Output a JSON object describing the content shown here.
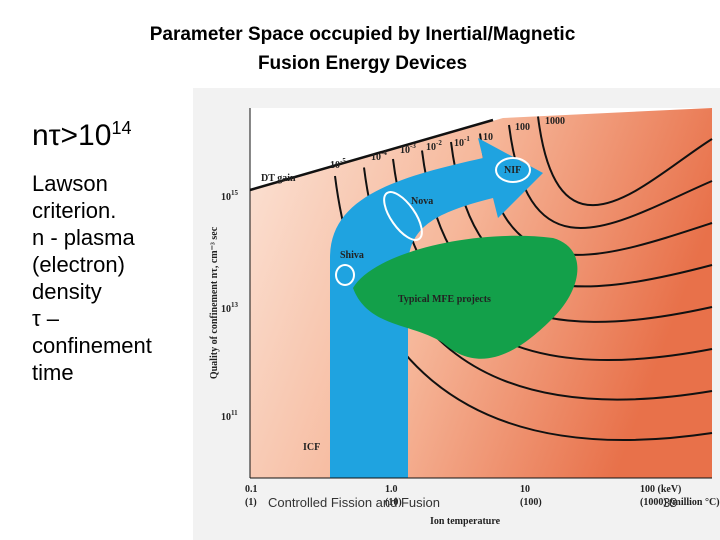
{
  "title": [
    "Parameter Space occupied by Inertial/Magnetic",
    "Fusion Energy Devices"
  ],
  "formula": {
    "base": "nτ>10",
    "exp": "14"
  },
  "body": [
    "Lawson",
    "criterion.",
    "n - plasma",
    "(electron)",
    "density",
    "τ –",
    "confinement",
    "time"
  ],
  "figure": {
    "y_label": "Quality of confinement nτ, cm⁻³ sec",
    "y_ticks": [
      {
        "base": "10",
        "exp": "15"
      },
      {
        "base": "10",
        "exp": "13"
      },
      {
        "base": "10",
        "exp": "11"
      }
    ],
    "x_ticks": [
      "0.1",
      "1.0",
      "10",
      "100 (keV)"
    ],
    "x_ticks_alt": [
      "(1)",
      "(10)",
      "(100)",
      "(1000) (million °C)"
    ],
    "x_label": "Ion temperature",
    "gain_label": "DT gain",
    "gain_values": [
      {
        "base": "10",
        "exp": "-5"
      },
      {
        "base": "10",
        "exp": "-4"
      },
      {
        "base": "10",
        "exp": "-3"
      },
      {
        "base": "10",
        "exp": "-2"
      },
      {
        "base": "10",
        "exp": "-1"
      },
      "10",
      "100",
      "1000"
    ],
    "regions": {
      "icf": "ICF",
      "shiva": "Shiva",
      "nova": "Nova",
      "nif": "NIF",
      "mfe": "Typical MFE projects"
    }
  },
  "footer": {
    "text": "Controlled Fission and Fusion",
    "page": "39"
  }
}
